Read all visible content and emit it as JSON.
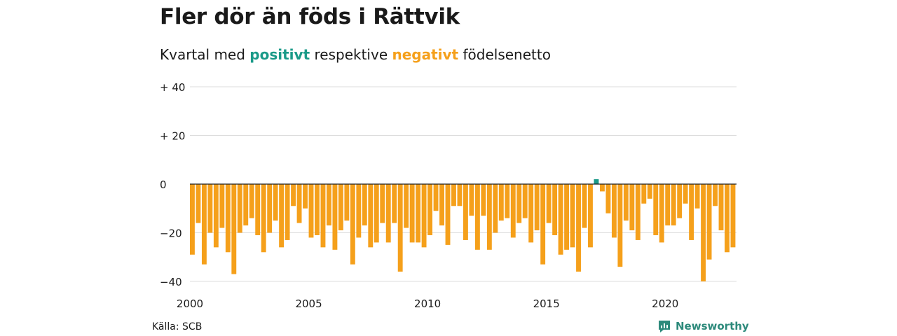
{
  "title": "Fler dör än föds i Rättvik",
  "subtitle": {
    "prefix": "Kvartal med",
    "positive_word": "positivt",
    "middle": "respektive",
    "negative_word": "negativt",
    "suffix": "födelsenetto"
  },
  "source": "Källa: SCB",
  "brand": {
    "name": "Newsworthy",
    "logo_icon": "bar-chart-icon"
  },
  "colors": {
    "positive": "#1a9a88",
    "negative": "#f5a01b",
    "grid": "#dddddd",
    "zero": "#222222",
    "brand": "#2d8a7b"
  },
  "chart_data": {
    "type": "bar",
    "x_start": 2000,
    "quarters_per_year": 4,
    "ylim": [
      -40,
      40
    ],
    "y_ticks": [
      {
        "value": 40,
        "label": "+ 40"
      },
      {
        "value": 20,
        "label": "+ 20"
      },
      {
        "value": 0,
        "label": "0"
      },
      {
        "value": -20,
        "label": "−20"
      },
      {
        "value": -40,
        "label": "−40"
      }
    ],
    "x_ticks": [
      {
        "value": 2000,
        "label": "2000"
      },
      {
        "value": 2005,
        "label": "2005"
      },
      {
        "value": 2010,
        "label": "2010"
      },
      {
        "value": 2015,
        "label": "2015"
      },
      {
        "value": 2020,
        "label": "2020"
      }
    ],
    "values": [
      -29,
      -16,
      -33,
      -20,
      -26,
      -18,
      -28,
      -37,
      -20,
      -17,
      -14,
      -21,
      -28,
      -20,
      -15,
      -26,
      -23,
      -9,
      -16,
      -10,
      -22,
      -21,
      -26,
      -17,
      -27,
      -19,
      -15,
      -33,
      -22,
      -17,
      -26,
      -24,
      -16,
      -24,
      -16,
      -36,
      -18,
      -24,
      -24,
      -26,
      -21,
      -11,
      -17,
      -25,
      -9,
      -9,
      -23,
      -13,
      -27,
      -13,
      -27,
      -20,
      -15,
      -14,
      -22,
      -16,
      -14,
      -24,
      -19,
      -33,
      -16,
      -21,
      -29,
      -27,
      -26,
      -36,
      -18,
      -26,
      2,
      -3,
      -12,
      -22,
      -34,
      -15,
      -19,
      -23,
      -8,
      -6,
      -21,
      -24,
      -17,
      -17,
      -14,
      -8,
      -23,
      -10,
      -40,
      -31,
      -9,
      -19,
      -28,
      -26
    ]
  }
}
